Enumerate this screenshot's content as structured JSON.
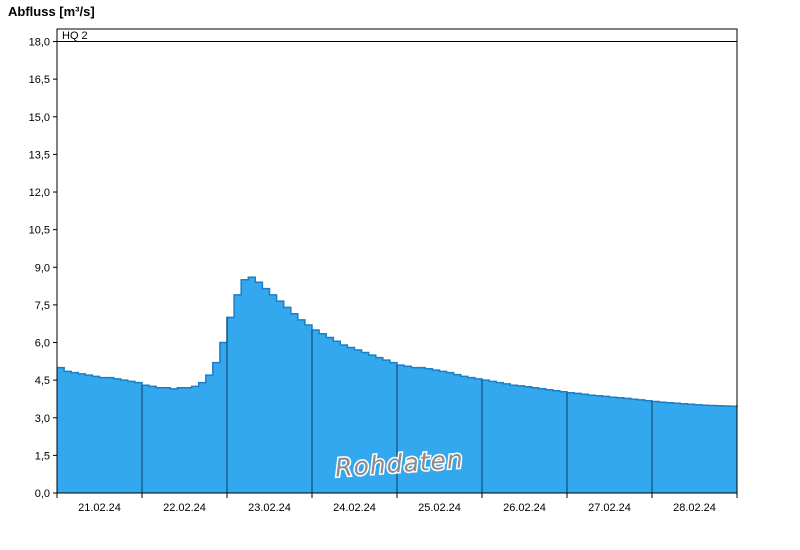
{
  "chart": {
    "title": "Abfluss [m³/s]",
    "hq_label": "HQ 2",
    "watermark": "Rohdaten",
    "colors": {
      "fill": "#33A8EE",
      "edge": "#1B7EC6",
      "day_line": "#123A57",
      "axis": "#000000",
      "watermark": "#8C8C8C"
    }
  },
  "chart_data": {
    "type": "area",
    "title": "Abfluss [m³/s]",
    "ylabel": "Abfluss [m³/s]",
    "xlabel": "",
    "ylim": [
      0,
      18
    ],
    "ymax_display": 18.5,
    "ytick_step": 1.5,
    "ytick_labels": [
      "0,0",
      "1,5",
      "3,0",
      "4,5",
      "6,0",
      "7,5",
      "9,0",
      "10,5",
      "12,0",
      "13,5",
      "15,0",
      "16,5",
      "18,0"
    ],
    "x_categories": [
      "21.02.24",
      "22.02.24",
      "23.02.24",
      "24.02.24",
      "25.02.24",
      "26.02.24",
      "27.02.24",
      "28.02.24"
    ],
    "hq2_level": 18.0,
    "legend": "none",
    "grid": "vertical-day-separators-inside-area-only",
    "sample_interval_hours": 2,
    "series_name": "Rohdaten (Abfluss)",
    "values": [
      5.0,
      4.85,
      4.8,
      4.75,
      4.7,
      4.65,
      4.6,
      4.6,
      4.55,
      4.5,
      4.45,
      4.4,
      4.3,
      4.25,
      4.2,
      4.2,
      4.15,
      4.2,
      4.2,
      4.25,
      4.4,
      4.7,
      5.2,
      6.0,
      7.0,
      7.9,
      8.5,
      8.6,
      8.4,
      8.15,
      7.9,
      7.65,
      7.4,
      7.15,
      6.9,
      6.7,
      6.5,
      6.35,
      6.2,
      6.05,
      5.9,
      5.8,
      5.7,
      5.6,
      5.5,
      5.4,
      5.3,
      5.2,
      5.1,
      5.05,
      5.0,
      5.0,
      4.95,
      4.9,
      4.85,
      4.8,
      4.72,
      4.65,
      4.6,
      4.55,
      4.5,
      4.45,
      4.4,
      4.35,
      4.3,
      4.27,
      4.24,
      4.2,
      4.16,
      4.12,
      4.08,
      4.04,
      4.0,
      3.97,
      3.94,
      3.9,
      3.88,
      3.85,
      3.82,
      3.8,
      3.77,
      3.74,
      3.71,
      3.68,
      3.65,
      3.62,
      3.6,
      3.58,
      3.56,
      3.54,
      3.52,
      3.5,
      3.49,
      3.48,
      3.47,
      3.46,
      3.5
    ]
  }
}
